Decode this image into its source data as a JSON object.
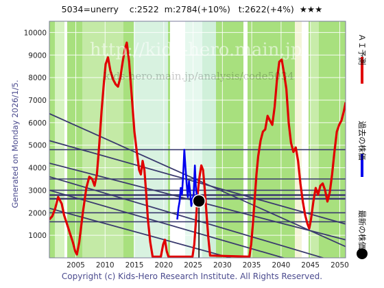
{
  "header": "5034=unerry    c:2522  m:2784(+10%)   t:2622(+4%)  ★★★",
  "side_label": "Generated on Monday 2026/1/5.",
  "footer": "Copyright (c) Kids-Hero Research Institute. All Rights Reserved.",
  "watermark": "http://kids-hero.main.jp/",
  "watermark_small": "kids-hero.main.jp/analysis/code5034",
  "legend": [
    {
      "label": "ＡＩ予測",
      "color": "#e00000"
    },
    {
      "label": "過去の株価",
      "color": "#0000ee"
    },
    {
      "label": "最新の株価",
      "color": "#000000"
    }
  ],
  "chart_data": {
    "type": "line",
    "xlim": [
      2000.5,
      2051.0
    ],
    "ylim": [
      0,
      10500
    ],
    "x_ticks": [
      2005,
      2010,
      2015,
      2020,
      2025,
      2030,
      2035,
      2040,
      2045,
      2050
    ],
    "y_ticks": [
      1000,
      2000,
      3000,
      4000,
      5000,
      6000,
      7000,
      8000,
      9000,
      10000
    ],
    "series": [
      {
        "name": "ＡＩ予測",
        "color": "#e00000",
        "points": [
          [
            2000.5,
            1700
          ],
          [
            2001.0,
            1850
          ],
          [
            2001.5,
            2200
          ],
          [
            2002.0,
            2700
          ],
          [
            2002.6,
            2400
          ],
          [
            2003.0,
            1900
          ],
          [
            2003.5,
            1500
          ],
          [
            2004.0,
            1100
          ],
          [
            2004.5,
            700
          ],
          [
            2004.9,
            300
          ],
          [
            2005.2,
            150
          ],
          [
            2005.6,
            700
          ],
          [
            2006.2,
            2000
          ],
          [
            2006.8,
            3100
          ],
          [
            2007.3,
            3600
          ],
          [
            2007.8,
            3500
          ],
          [
            2008.2,
            3200
          ],
          [
            2008.6,
            3700
          ],
          [
            2009.0,
            5000
          ],
          [
            2009.4,
            6500
          ],
          [
            2009.8,
            7800
          ],
          [
            2010.1,
            8600
          ],
          [
            2010.5,
            8900
          ],
          [
            2010.9,
            8300
          ],
          [
            2011.4,
            7900
          ],
          [
            2011.8,
            7700
          ],
          [
            2012.2,
            7600
          ],
          [
            2012.6,
            8000
          ],
          [
            2013.0,
            8700
          ],
          [
            2013.4,
            9300
          ],
          [
            2013.7,
            9550
          ],
          [
            2014.1,
            8700
          ],
          [
            2014.6,
            7000
          ],
          [
            2015.0,
            5600
          ],
          [
            2015.4,
            4700
          ],
          [
            2015.8,
            3900
          ],
          [
            2016.1,
            3700
          ],
          [
            2016.4,
            4300
          ],
          [
            2016.7,
            3900
          ],
          [
            2017.0,
            2900
          ],
          [
            2017.3,
            1700
          ],
          [
            2017.7,
            700
          ],
          [
            2018.1,
            50
          ],
          [
            2019.5,
            50
          ],
          [
            2019.9,
            600
          ],
          [
            2020.2,
            800
          ],
          [
            2020.5,
            300
          ],
          [
            2020.8,
            50
          ],
          [
            2024.9,
            50
          ],
          [
            2025.2,
            600
          ],
          [
            2025.5,
            1700
          ],
          [
            2025.8,
            2900
          ],
          [
            2026.1,
            3600
          ],
          [
            2026.4,
            4100
          ],
          [
            2026.7,
            3900
          ],
          [
            2027.0,
            3000
          ],
          [
            2027.3,
            1900
          ],
          [
            2027.6,
            900
          ],
          [
            2027.9,
            100
          ],
          [
            2034.6,
            50
          ],
          [
            2034.9,
            600
          ],
          [
            2035.2,
            1500
          ],
          [
            2035.5,
            2600
          ],
          [
            2035.8,
            3700
          ],
          [
            2036.1,
            4500
          ],
          [
            2036.5,
            5200
          ],
          [
            2036.9,
            5600
          ],
          [
            2037.3,
            5700
          ],
          [
            2037.7,
            6300
          ],
          [
            2038.1,
            6100
          ],
          [
            2038.5,
            5900
          ],
          [
            2038.9,
            6700
          ],
          [
            2039.3,
            7900
          ],
          [
            2039.7,
            8700
          ],
          [
            2040.1,
            8800
          ],
          [
            2040.5,
            8200
          ],
          [
            2040.9,
            7500
          ],
          [
            2041.3,
            6000
          ],
          [
            2041.7,
            5100
          ],
          [
            2042.1,
            4700
          ],
          [
            2042.5,
            4900
          ],
          [
            2042.9,
            4300
          ],
          [
            2043.3,
            3300
          ],
          [
            2043.7,
            2500
          ],
          [
            2044.1,
            1900
          ],
          [
            2044.5,
            1500
          ],
          [
            2044.8,
            1300
          ],
          [
            2045.1,
            1700
          ],
          [
            2045.5,
            2500
          ],
          [
            2045.9,
            3100
          ],
          [
            2046.3,
            2800
          ],
          [
            2046.7,
            3200
          ],
          [
            2047.1,
            3300
          ],
          [
            2047.5,
            3000
          ],
          [
            2047.9,
            2500
          ],
          [
            2048.3,
            2900
          ],
          [
            2048.7,
            3700
          ],
          [
            2049.1,
            4700
          ],
          [
            2049.5,
            5600
          ],
          [
            2049.9,
            5900
          ],
          [
            2050.3,
            6100
          ],
          [
            2050.7,
            6500
          ],
          [
            2051.0,
            6900
          ]
        ]
      },
      {
        "name": "過去の株価",
        "color": "#0000ee",
        "points": [
          [
            2022.3,
            1700
          ],
          [
            2022.5,
            2200
          ],
          [
            2022.7,
            2500
          ],
          [
            2022.9,
            3100
          ],
          [
            2023.1,
            2800
          ],
          [
            2023.3,
            3600
          ],
          [
            2023.5,
            4800
          ],
          [
            2023.7,
            4000
          ],
          [
            2023.9,
            3300
          ],
          [
            2024.1,
            2700
          ],
          [
            2024.3,
            3400
          ],
          [
            2024.5,
            2900
          ],
          [
            2024.7,
            2300
          ],
          [
            2024.9,
            2600
          ],
          [
            2025.1,
            2800
          ],
          [
            2025.3,
            4100
          ],
          [
            2025.5,
            3000
          ],
          [
            2025.7,
            2700
          ],
          [
            2025.9,
            2600
          ]
        ]
      }
    ],
    "latest_point": {
      "x": 2026.0,
      "y": 2522
    },
    "horizontal_levels": [
      4800,
      3500,
      3000,
      2784,
      2622,
      2000,
      1600
    ],
    "trend_lines": [
      [
        [
          2000.5,
          6400
        ],
        [
          2051.0,
          500
        ]
      ],
      [
        [
          2000.5,
          5200
        ],
        [
          2051.0,
          1500
        ]
      ],
      [
        [
          2000.5,
          4200
        ],
        [
          2051.0,
          800
        ]
      ],
      [
        [
          2000.5,
          3600
        ],
        [
          2051.0,
          -300
        ]
      ],
      [
        [
          2000.5,
          3000
        ],
        [
          2051.0,
          -800
        ]
      ],
      [
        [
          2000.5,
          2200
        ],
        [
          2051.0,
          -1400
        ]
      ]
    ]
  }
}
